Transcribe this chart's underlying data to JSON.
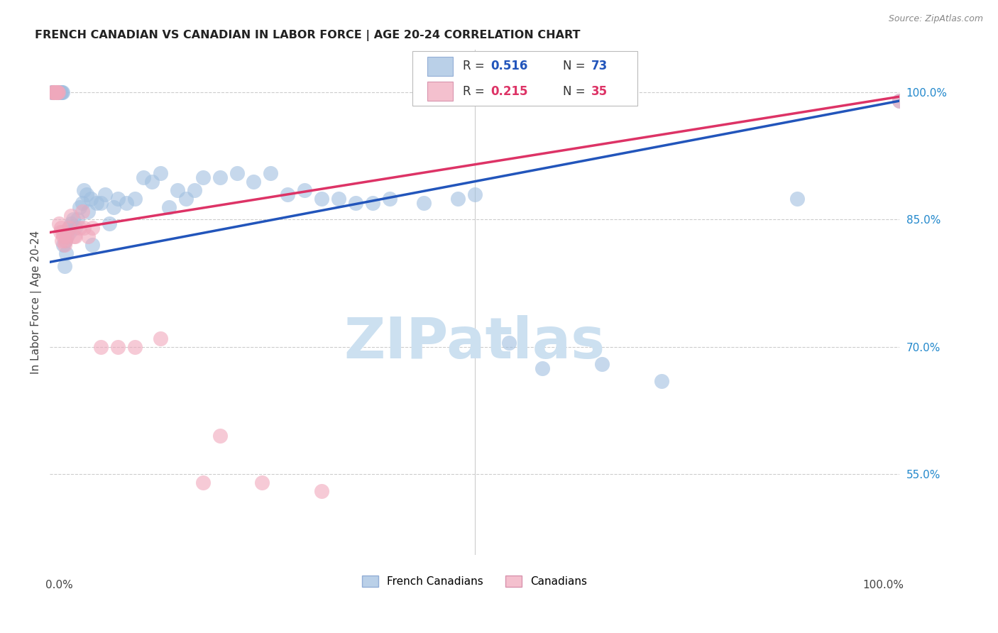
{
  "title": "FRENCH CANADIAN VS CANADIAN IN LABOR FORCE | AGE 20-24 CORRELATION CHART",
  "source": "Source: ZipAtlas.com",
  "ylabel": "In Labor Force | Age 20-24",
  "blue_R": 0.516,
  "blue_N": 73,
  "pink_R": 0.215,
  "pink_N": 35,
  "blue_label": "French Canadians",
  "pink_label": "Canadians",
  "blue_color": "#a0bfe0",
  "pink_color": "#f0a8bc",
  "blue_line_color": "#2255bb",
  "pink_line_color": "#dd3366",
  "watermark_text": "ZIPatlas",
  "watermark_color": "#cce0f0",
  "background_color": "#ffffff",
  "grid_color": "#cccccc",
  "ytick_positions": [
    0.55,
    0.7,
    0.85,
    1.0
  ],
  "ytick_labels": [
    "55.0%",
    "70.0%",
    "85.0%",
    "100.0%"
  ],
  "xlim": [
    0.0,
    1.0
  ],
  "ylim": [
    0.455,
    1.05
  ],
  "blue_line_x0": 0.0,
  "blue_line_y0": 0.8,
  "blue_line_x1": 1.0,
  "blue_line_y1": 0.99,
  "pink_line_x0": 0.0,
  "pink_line_y0": 0.835,
  "pink_line_x1": 1.0,
  "pink_line_y1": 0.995,
  "blue_x": [
    0.002,
    0.003,
    0.004,
    0.004,
    0.005,
    0.005,
    0.006,
    0.006,
    0.007,
    0.007,
    0.008,
    0.009,
    0.01,
    0.01,
    0.011,
    0.012,
    0.013,
    0.014,
    0.015,
    0.016,
    0.017,
    0.018,
    0.019,
    0.02,
    0.022,
    0.023,
    0.025,
    0.027,
    0.03,
    0.032,
    0.035,
    0.038,
    0.04,
    0.043,
    0.045,
    0.048,
    0.05,
    0.055,
    0.06,
    0.065,
    0.07,
    0.075,
    0.08,
    0.09,
    0.1,
    0.11,
    0.12,
    0.13,
    0.14,
    0.15,
    0.16,
    0.17,
    0.18,
    0.2,
    0.22,
    0.24,
    0.26,
    0.28,
    0.3,
    0.32,
    0.34,
    0.36,
    0.38,
    0.4,
    0.44,
    0.48,
    0.5,
    0.54,
    0.58,
    0.65,
    0.72,
    0.88,
    1.0
  ],
  "blue_y": [
    1.0,
    1.0,
    1.0,
    1.0,
    1.0,
    1.0,
    1.0,
    1.0,
    1.0,
    1.0,
    1.0,
    1.0,
    1.0,
    1.0,
    1.0,
    1.0,
    1.0,
    1.0,
    1.0,
    0.82,
    0.795,
    0.825,
    0.81,
    0.83,
    0.84,
    0.835,
    0.845,
    0.85,
    0.84,
    0.85,
    0.865,
    0.87,
    0.885,
    0.88,
    0.86,
    0.875,
    0.82,
    0.87,
    0.87,
    0.88,
    0.845,
    0.865,
    0.875,
    0.87,
    0.875,
    0.9,
    0.895,
    0.905,
    0.865,
    0.885,
    0.875,
    0.885,
    0.9,
    0.9,
    0.905,
    0.895,
    0.905,
    0.88,
    0.885,
    0.875,
    0.875,
    0.87,
    0.87,
    0.875,
    0.87,
    0.875,
    0.88,
    0.705,
    0.675,
    0.68,
    0.66,
    0.875,
    0.99
  ],
  "pink_x": [
    0.003,
    0.004,
    0.005,
    0.006,
    0.007,
    0.008,
    0.009,
    0.01,
    0.011,
    0.012,
    0.013,
    0.014,
    0.015,
    0.016,
    0.017,
    0.018,
    0.02,
    0.022,
    0.025,
    0.028,
    0.03,
    0.035,
    0.038,
    0.04,
    0.045,
    0.05,
    0.06,
    0.08,
    0.1,
    0.13,
    0.18,
    0.2,
    0.25,
    0.32,
    1.0
  ],
  "pink_y": [
    1.0,
    1.0,
    1.0,
    1.0,
    1.0,
    1.0,
    1.0,
    1.0,
    0.845,
    0.835,
    0.84,
    0.825,
    0.835,
    0.83,
    0.82,
    0.825,
    0.83,
    0.84,
    0.855,
    0.83,
    0.83,
    0.84,
    0.86,
    0.84,
    0.83,
    0.84,
    0.7,
    0.7,
    0.7,
    0.71,
    0.54,
    0.595,
    0.54,
    0.53,
    0.99
  ]
}
